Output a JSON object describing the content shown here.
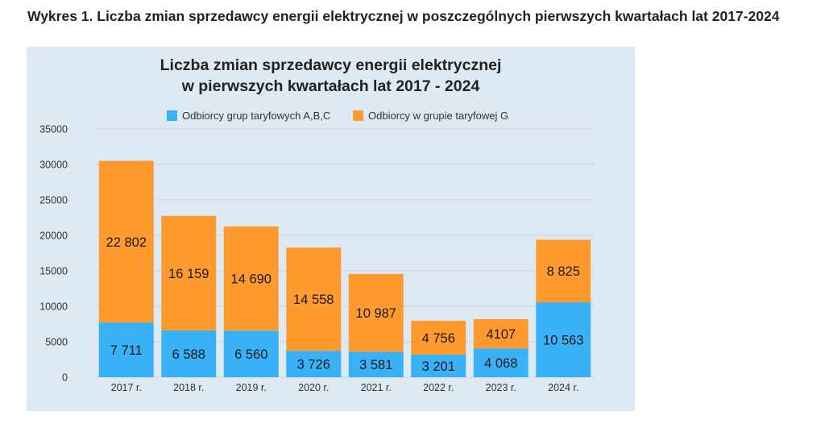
{
  "page_heading": "Wykres 1. Liczba zmian sprzedawcy energii elektrycznej w poszczególnych pierwszych kwartałach lat 2017-2024",
  "colors": {
    "panel_bg": "#dde9f3",
    "series_abc": "#38b1f7",
    "series_g": "#ff9a2e",
    "grid": "#c9d3dc"
  },
  "chart_data": {
    "type": "bar",
    "stacked": true,
    "title": [
      "Liczba zmian sprzedawcy energii elektrycznej",
      "w pierwszych kwartałach lat 2017 - 2024"
    ],
    "xlabel": "",
    "ylabel": "",
    "ylim": [
      0,
      35000
    ],
    "yticks": [
      "0",
      "5000",
      "10000",
      "15000",
      "20000",
      "25000",
      "30000",
      "35000"
    ],
    "grid": true,
    "legend_position": "top",
    "categories": [
      "2017 r.",
      "2018 r.",
      "2019 r.",
      "2020 r.",
      "2021 r.",
      "2022 r.",
      "2023 r.",
      "2024 r."
    ],
    "series": [
      {
        "name": "Odbiorcy grup taryfowych A,B,C",
        "color": "#38b1f7",
        "values": [
          7711,
          6588,
          6560,
          3726,
          3581,
          3201,
          4068,
          10563
        ],
        "labels": [
          "7 711",
          "6 588",
          "6 560",
          "3 726",
          "3 581",
          "3 201",
          "4 068",
          "10 563"
        ]
      },
      {
        "name": "Odbiorcy w grupie taryfowej G",
        "color": "#ff9a2e",
        "values": [
          22802,
          16159,
          14690,
          14558,
          10987,
          4756,
          4107,
          8825
        ],
        "labels": [
          "22 802",
          "16 159",
          "14 690",
          "14 558",
          "10 987",
          "4 756",
          "4107",
          "8 825"
        ]
      }
    ]
  }
}
